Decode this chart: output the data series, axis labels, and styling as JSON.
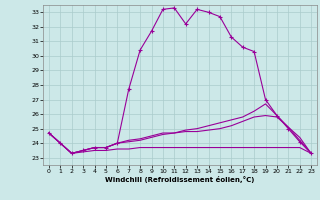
{
  "background_color": "#cce8e8",
  "grid_color": "#aacccc",
  "line_color": "#990099",
  "xlabel": "Windchill (Refroidissement éolien,°C)",
  "ylabel_ticks": [
    23,
    24,
    25,
    26,
    27,
    28,
    29,
    30,
    31,
    32,
    33
  ],
  "xticks": [
    0,
    1,
    2,
    3,
    4,
    5,
    6,
    7,
    8,
    9,
    10,
    11,
    12,
    13,
    14,
    15,
    16,
    17,
    18,
    19,
    20,
    21,
    22,
    23
  ],
  "xlim": [
    -0.5,
    23.5
  ],
  "ylim": [
    22.5,
    33.5
  ],
  "line1": [
    24.7,
    24.0,
    23.3,
    23.5,
    23.7,
    23.7,
    24.0,
    27.7,
    30.4,
    31.7,
    33.2,
    33.3,
    32.2,
    33.2,
    33.0,
    32.7,
    31.3,
    30.6,
    30.3,
    27.0,
    25.9,
    25.0,
    24.1,
    23.3
  ],
  "line2": [
    24.7,
    24.0,
    23.3,
    23.5,
    23.7,
    23.7,
    24.0,
    24.2,
    24.3,
    24.5,
    24.7,
    24.7,
    24.8,
    24.8,
    24.9,
    25.0,
    25.2,
    25.5,
    25.8,
    25.9,
    25.8,
    25.1,
    24.4,
    23.3
  ],
  "line3": [
    24.7,
    24.0,
    23.3,
    23.4,
    23.5,
    23.5,
    23.6,
    23.6,
    23.7,
    23.7,
    23.7,
    23.7,
    23.7,
    23.7,
    23.7,
    23.7,
    23.7,
    23.7,
    23.7,
    23.7,
    23.7,
    23.7,
    23.7,
    23.3
  ],
  "line4": [
    24.7,
    24.0,
    23.3,
    23.5,
    23.7,
    23.7,
    24.0,
    24.1,
    24.2,
    24.4,
    24.6,
    24.7,
    24.9,
    25.0,
    25.2,
    25.4,
    25.6,
    25.8,
    26.2,
    26.7,
    25.9,
    25.1,
    24.2,
    23.3
  ]
}
